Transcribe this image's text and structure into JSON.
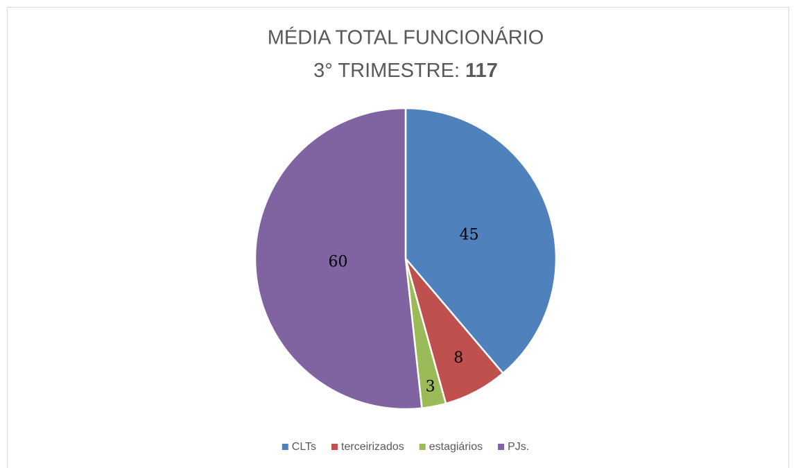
{
  "chart_data": {
    "type": "pie",
    "title": "MÉDIA TOTAL FUNCIONÁRIO",
    "subtitle": "3° TRIMESTRE:",
    "total": 117,
    "categories": [
      "CLTs",
      "terceirizados",
      "estagiários",
      "PJs."
    ],
    "values": [
      45,
      8,
      3,
      60
    ],
    "colors": [
      "#4f81bd",
      "#c0504d",
      "#9bbb59",
      "#8064a2"
    ],
    "legend": "bottom"
  }
}
